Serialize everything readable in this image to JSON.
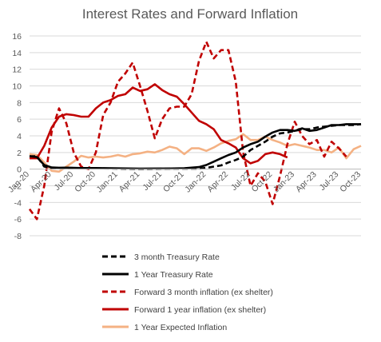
{
  "chart_data": {
    "type": "line",
    "title": "Interest Rates and Forward Inflation",
    "xlabel": "",
    "ylabel": "",
    "ylim": [
      -8,
      16
    ],
    "y_ticks": [
      -8,
      -6,
      -4,
      -2,
      0,
      2,
      4,
      6,
      8,
      10,
      12,
      14,
      16
    ],
    "x_start": "2020-01",
    "x_end": "2023-10",
    "x_ticks": [
      "Jan-20",
      "Apr-20",
      "Jul-20",
      "Oct-20",
      "Jan-21",
      "Apr-21",
      "Jul-21",
      "Oct-21",
      "Jan-22",
      "Apr-22",
      "Jul-22",
      "Oct-22",
      "Jan-23",
      "Apr-23",
      "Jul-23",
      "Oct-23"
    ],
    "grid": "horizontal",
    "legend_position": "bottom",
    "series": [
      {
        "name": "3 month Treasury Rate",
        "color": "#000000",
        "dash": "dashed",
        "points": [
          [
            "2020-01",
            1.55
          ],
          [
            "2020-02",
            1.55
          ],
          [
            "2020-03",
            0.3
          ],
          [
            "2020-04",
            0.13
          ],
          [
            "2020-05",
            0.12
          ],
          [
            "2020-06",
            0.15
          ],
          [
            "2020-08",
            0.1
          ],
          [
            "2020-10",
            0.1
          ],
          [
            "2020-12",
            0.08
          ],
          [
            "2021-02",
            0.04
          ],
          [
            "2021-04",
            0.02
          ],
          [
            "2021-06",
            0.04
          ],
          [
            "2021-08",
            0.05
          ],
          [
            "2021-10",
            0.05
          ],
          [
            "2021-12",
            0.06
          ],
          [
            "2022-01",
            0.15
          ],
          [
            "2022-02",
            0.3
          ],
          [
            "2022-03",
            0.45
          ],
          [
            "2022-04",
            0.8
          ],
          [
            "2022-05",
            1.1
          ],
          [
            "2022-06",
            1.5
          ],
          [
            "2022-07",
            2.3
          ],
          [
            "2022-08",
            2.8
          ],
          [
            "2022-09",
            3.3
          ],
          [
            "2022-10",
            3.9
          ],
          [
            "2022-11",
            4.3
          ],
          [
            "2022-12",
            4.4
          ],
          [
            "2023-01",
            4.6
          ],
          [
            "2023-02",
            4.8
          ],
          [
            "2023-03",
            4.8
          ],
          [
            "2023-04",
            5.0
          ],
          [
            "2023-05",
            5.1
          ],
          [
            "2023-06",
            5.2
          ],
          [
            "2023-07",
            5.3
          ],
          [
            "2023-08",
            5.3
          ],
          [
            "2023-09",
            5.3
          ],
          [
            "2023-10",
            5.4
          ]
        ]
      },
      {
        "name": "1 Year Treasury Rate",
        "color": "#000000",
        "dash": "solid",
        "points": [
          [
            "2020-01",
            1.55
          ],
          [
            "2020-02",
            1.45
          ],
          [
            "2020-03",
            0.5
          ],
          [
            "2020-04",
            0.2
          ],
          [
            "2020-05",
            0.17
          ],
          [
            "2020-06",
            0.18
          ],
          [
            "2020-08",
            0.13
          ],
          [
            "2020-10",
            0.13
          ],
          [
            "2020-12",
            0.1
          ],
          [
            "2021-02",
            0.08
          ],
          [
            "2021-04",
            0.06
          ],
          [
            "2021-06",
            0.07
          ],
          [
            "2021-08",
            0.07
          ],
          [
            "2021-10",
            0.1
          ],
          [
            "2021-12",
            0.25
          ],
          [
            "2022-01",
            0.5
          ],
          [
            "2022-02",
            0.9
          ],
          [
            "2022-03",
            1.3
          ],
          [
            "2022-04",
            1.7
          ],
          [
            "2022-05",
            2.0
          ],
          [
            "2022-06",
            2.6
          ],
          [
            "2022-07",
            3.0
          ],
          [
            "2022-08",
            3.3
          ],
          [
            "2022-09",
            3.9
          ],
          [
            "2022-10",
            4.4
          ],
          [
            "2022-11",
            4.7
          ],
          [
            "2022-12",
            4.7
          ],
          [
            "2023-01",
            4.6
          ],
          [
            "2023-02",
            4.9
          ],
          [
            "2023-03",
            4.6
          ],
          [
            "2023-04",
            4.7
          ],
          [
            "2023-05",
            5.0
          ],
          [
            "2023-06",
            5.3
          ],
          [
            "2023-07",
            5.3
          ],
          [
            "2023-08",
            5.4
          ],
          [
            "2023-09",
            5.4
          ],
          [
            "2023-10",
            5.4
          ]
        ]
      },
      {
        "name": "Forward 3 month inflation (ex shelter)",
        "color": "#C00000",
        "dash": "dashed",
        "points": [
          [
            "2020-01",
            -4.8
          ],
          [
            "2020-02",
            -6.0
          ],
          [
            "2020-03",
            -2.0
          ],
          [
            "2020-04",
            4.5
          ],
          [
            "2020-05",
            7.3
          ],
          [
            "2020-06",
            5.5
          ],
          [
            "2020-07",
            2.0
          ],
          [
            "2020-08",
            0.3
          ],
          [
            "2020-09",
            0.0
          ],
          [
            "2020-10",
            2.0
          ],
          [
            "2020-11",
            6.5
          ],
          [
            "2020-12",
            8.0
          ],
          [
            "2021-01",
            10.5
          ],
          [
            "2021-02",
            11.5
          ],
          [
            "2021-03",
            12.8
          ],
          [
            "2021-04",
            10.0
          ],
          [
            "2021-05",
            7.0
          ],
          [
            "2021-06",
            3.7
          ],
          [
            "2021-07",
            6.0
          ],
          [
            "2021-08",
            7.3
          ],
          [
            "2021-09",
            7.5
          ],
          [
            "2021-10",
            7.5
          ],
          [
            "2021-11",
            9.0
          ],
          [
            "2021-12",
            13.0
          ],
          [
            "2022-01",
            15.3
          ],
          [
            "2022-02",
            13.3
          ],
          [
            "2022-03",
            14.3
          ],
          [
            "2022-04",
            14.3
          ],
          [
            "2022-05",
            10.5
          ],
          [
            "2022-06",
            2.0
          ],
          [
            "2022-07",
            -2.0
          ],
          [
            "2022-08",
            -0.5
          ],
          [
            "2022-09",
            -1.5
          ],
          [
            "2022-10",
            -4.2
          ],
          [
            "2022-11",
            -0.8
          ],
          [
            "2022-12",
            3.0
          ],
          [
            "2023-01",
            5.7
          ],
          [
            "2023-02",
            4.0
          ],
          [
            "2023-03",
            3.0
          ],
          [
            "2023-04",
            3.5
          ],
          [
            "2023-05",
            1.5
          ],
          [
            "2023-06",
            3.3
          ],
          [
            "2023-07",
            2.5
          ],
          [
            "2023-08",
            1.5
          ]
        ]
      },
      {
        "name": "Forward 1 year inflation (ex shelter)",
        "color": "#C00000",
        "dash": "solid",
        "points": [
          [
            "2020-01",
            1.3
          ],
          [
            "2020-02",
            1.3
          ],
          [
            "2020-03",
            2.8
          ],
          [
            "2020-04",
            5.0
          ],
          [
            "2020-05",
            6.3
          ],
          [
            "2020-06",
            6.6
          ],
          [
            "2020-07",
            6.5
          ],
          [
            "2020-08",
            6.3
          ],
          [
            "2020-09",
            6.3
          ],
          [
            "2020-10",
            7.3
          ],
          [
            "2020-11",
            8.0
          ],
          [
            "2020-12",
            8.3
          ],
          [
            "2021-01",
            8.8
          ],
          [
            "2021-02",
            9.0
          ],
          [
            "2021-03",
            9.8
          ],
          [
            "2021-04",
            9.4
          ],
          [
            "2021-05",
            9.6
          ],
          [
            "2021-06",
            10.2
          ],
          [
            "2021-07",
            9.5
          ],
          [
            "2021-08",
            9.0
          ],
          [
            "2021-09",
            8.7
          ],
          [
            "2021-10",
            7.8
          ],
          [
            "2021-11",
            6.8
          ],
          [
            "2021-12",
            5.8
          ],
          [
            "2022-01",
            5.4
          ],
          [
            "2022-02",
            4.8
          ],
          [
            "2022-03",
            3.5
          ],
          [
            "2022-04",
            3.1
          ],
          [
            "2022-05",
            2.6
          ],
          [
            "2022-06",
            1.3
          ],
          [
            "2022-07",
            0.7
          ],
          [
            "2022-08",
            1.0
          ],
          [
            "2022-09",
            1.8
          ],
          [
            "2022-10",
            2.0
          ],
          [
            "2022-11",
            1.8
          ],
          [
            "2022-12",
            1.4
          ]
        ]
      },
      {
        "name": "1 Year Expected Inflation",
        "color": "#F4B183",
        "dash": "solid",
        "points": [
          [
            "2020-01",
            1.8
          ],
          [
            "2020-02",
            1.7
          ],
          [
            "2020-03",
            0.8
          ],
          [
            "2020-04",
            -0.2
          ],
          [
            "2020-05",
            -0.3
          ],
          [
            "2020-06",
            0.3
          ],
          [
            "2020-07",
            0.9
          ],
          [
            "2020-08",
            1.6
          ],
          [
            "2020-09",
            1.4
          ],
          [
            "2020-10",
            1.5
          ],
          [
            "2020-11",
            1.4
          ],
          [
            "2020-12",
            1.5
          ],
          [
            "2021-01",
            1.7
          ],
          [
            "2021-02",
            1.5
          ],
          [
            "2021-03",
            1.8
          ],
          [
            "2021-04",
            1.9
          ],
          [
            "2021-05",
            2.1
          ],
          [
            "2021-06",
            2.0
          ],
          [
            "2021-07",
            2.3
          ],
          [
            "2021-08",
            2.7
          ],
          [
            "2021-09",
            2.5
          ],
          [
            "2021-10",
            1.8
          ],
          [
            "2021-11",
            2.5
          ],
          [
            "2021-12",
            2.5
          ],
          [
            "2022-01",
            2.2
          ],
          [
            "2022-02",
            2.6
          ],
          [
            "2022-03",
            3.1
          ],
          [
            "2022-04",
            3.4
          ],
          [
            "2022-05",
            3.6
          ],
          [
            "2022-06",
            4.2
          ],
          [
            "2022-07",
            3.5
          ],
          [
            "2022-08",
            3.5
          ],
          [
            "2022-09",
            3.9
          ],
          [
            "2022-10",
            3.5
          ],
          [
            "2022-11",
            3.2
          ],
          [
            "2022-12",
            2.8
          ],
          [
            "2023-01",
            3.0
          ],
          [
            "2023-02",
            2.8
          ],
          [
            "2023-03",
            2.6
          ],
          [
            "2023-04",
            2.3
          ],
          [
            "2023-05",
            2.3
          ],
          [
            "2023-06",
            2.0
          ],
          [
            "2023-07",
            2.6
          ],
          [
            "2023-08",
            1.3
          ],
          [
            "2023-09",
            2.4
          ],
          [
            "2023-10",
            2.8
          ]
        ]
      }
    ]
  }
}
